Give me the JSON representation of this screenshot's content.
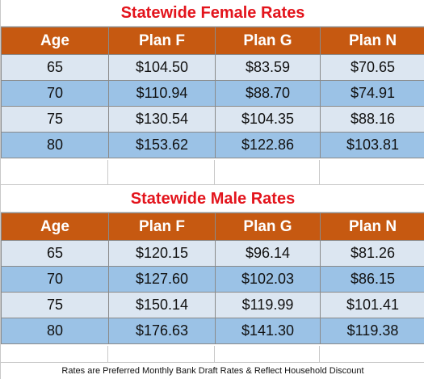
{
  "female": {
    "title": "Statewide Female Rates",
    "headers": [
      "Age",
      "Plan F",
      "Plan G",
      "Plan N"
    ],
    "rows": [
      [
        "65",
        "$104.50",
        "$83.59",
        "$70.65"
      ],
      [
        "70",
        "$110.94",
        "$88.70",
        "$74.91"
      ],
      [
        "75",
        "$130.54",
        "$104.35",
        "$88.16"
      ],
      [
        "80",
        "$153.62",
        "$122.86",
        "$103.81"
      ]
    ]
  },
  "male": {
    "title": "Statewide Male Rates",
    "headers": [
      "Age",
      "Plan F",
      "Plan G",
      "Plan N"
    ],
    "rows": [
      [
        "65",
        "$120.15",
        "$96.14",
        "$81.26"
      ],
      [
        "70",
        "$127.60",
        "$102.03",
        "$86.15"
      ],
      [
        "75",
        "$150.14",
        "$119.99",
        "$101.41"
      ],
      [
        "80",
        "$176.63",
        "$141.30",
        "$119.38"
      ]
    ]
  },
  "footer": {
    "note": "Rates are Preferred Monthly Bank Draft Rates & Reflect Household Discount"
  },
  "colors": {
    "title_red": "#e3141c",
    "header_orange": "#c65911",
    "row_light_blue": "#dce6f1",
    "row_dark_blue": "#9bc2e6"
  }
}
